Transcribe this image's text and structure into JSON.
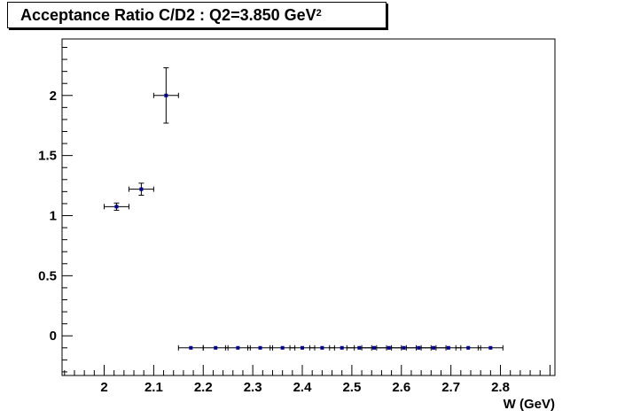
{
  "chart_data": {
    "type": "scatter",
    "title_main": "Acceptance Ratio C/D2 : Q2=3.850 GeV",
    "title_sup": "2",
    "xlabel": "W (GeV)",
    "ylabel": "",
    "xlim": [
      1.915,
      2.91
    ],
    "ylim": [
      -0.33,
      2.47
    ],
    "x_ticks": [
      "2",
      "2.1",
      "2.2",
      "2.3",
      "2.4",
      "2.5",
      "2.6",
      "2.7",
      "2.8"
    ],
    "y_ticks": [
      "0",
      "0.5",
      "1",
      "1.5",
      "2"
    ],
    "grid": false,
    "marker_color": "#00008b",
    "points": [
      {
        "x": 2.025,
        "y": 1.075,
        "xerr": 0.025,
        "yerr": 0.03
      },
      {
        "x": 2.075,
        "y": 1.22,
        "xerr": 0.025,
        "yerr": 0.05
      },
      {
        "x": 2.125,
        "y": 2.0,
        "xerr": 0.025,
        "yerr": 0.23
      },
      {
        "x": 2.175,
        "y": -0.1,
        "xerr": 0.025,
        "yerr": 0
      },
      {
        "x": 2.225,
        "y": -0.1,
        "xerr": 0.025,
        "yerr": 0
      },
      {
        "x": 2.27,
        "y": -0.1,
        "xerr": 0.025,
        "yerr": 0
      },
      {
        "x": 2.315,
        "y": -0.1,
        "xerr": 0.025,
        "yerr": 0
      },
      {
        "x": 2.36,
        "y": -0.1,
        "xerr": 0.025,
        "yerr": 0
      },
      {
        "x": 2.4,
        "y": -0.1,
        "xerr": 0.025,
        "yerr": 0
      },
      {
        "x": 2.44,
        "y": -0.1,
        "xerr": 0.025,
        "yerr": 0
      },
      {
        "x": 2.48,
        "y": -0.1,
        "xerr": 0.025,
        "yerr": 0
      },
      {
        "x": 2.515,
        "y": -0.1,
        "xerr": 0.025,
        "yerr": 0
      },
      {
        "x": 2.545,
        "y": -0.1,
        "xerr": 0.025,
        "yerr": 0
      },
      {
        "x": 2.575,
        "y": -0.1,
        "xerr": 0.025,
        "yerr": 0
      },
      {
        "x": 2.605,
        "y": -0.1,
        "xerr": 0.025,
        "yerr": 0
      },
      {
        "x": 2.635,
        "y": -0.1,
        "xerr": 0.025,
        "yerr": 0
      },
      {
        "x": 2.665,
        "y": -0.1,
        "xerr": 0.025,
        "yerr": 0
      },
      {
        "x": 2.695,
        "y": -0.1,
        "xerr": 0.025,
        "yerr": 0
      },
      {
        "x": 2.735,
        "y": -0.1,
        "xerr": 0.025,
        "yerr": 0
      },
      {
        "x": 2.78,
        "y": -0.1,
        "xerr": 0.025,
        "yerr": 0
      }
    ]
  }
}
